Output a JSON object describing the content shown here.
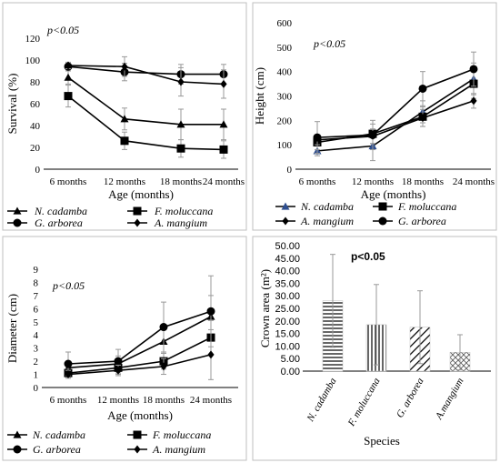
{
  "chart_data": [
    {
      "type": "line",
      "x": [
        "6 months",
        "12 months",
        "18 months",
        "24 months"
      ],
      "xlabel": "Age (months)",
      "ylabel": "Survival (%)",
      "ylim": [
        0,
        120
      ],
      "yticks": [
        0,
        20,
        40,
        60,
        80,
        100,
        120
      ],
      "annotation": "p<0.05",
      "series": [
        {
          "name": "N. cadamba",
          "marker": "triangle",
          "values": [
            84,
            46,
            41,
            41
          ],
          "err": [
            6,
            10,
            14,
            14
          ]
        },
        {
          "name": "F. moluccana",
          "marker": "square",
          "values": [
            67,
            26,
            19,
            18
          ],
          "err": [
            10,
            8,
            8,
            8
          ]
        },
        {
          "name": "G. arborea",
          "marker": "circle",
          "values": [
            94,
            89,
            87,
            87
          ],
          "err": [
            3,
            8,
            9,
            9
          ]
        },
        {
          "name": "A. mangium",
          "marker": "diamond",
          "values": [
            95,
            94,
            80,
            78
          ],
          "err": [
            3,
            9,
            13,
            13
          ]
        }
      ],
      "legend_placement": "bottom"
    },
    {
      "type": "line",
      "x": [
        "6 months",
        "12 months",
        "18 months",
        "24 months"
      ],
      "xlabel": "Age (months)",
      "ylabel": "Height (cm)",
      "ylim": [
        0,
        600
      ],
      "yticks": [
        0,
        100,
        200,
        300,
        400,
        500,
        600
      ],
      "annotation": "p<0.05",
      "series": [
        {
          "name": "N. cadamba",
          "marker": "triangle",
          "color": "#2f4f8f",
          "values": [
            75,
            95,
            235,
            370
          ],
          "err": [
            20,
            60,
            45,
            65
          ]
        },
        {
          "name": "F. moluccana",
          "marker": "square",
          "values": [
            110,
            145,
            215,
            350
          ],
          "err": [
            30,
            40,
            40,
            60
          ]
        },
        {
          "name": "A. mangium",
          "marker": "diamond",
          "values": [
            120,
            135,
            210,
            280
          ],
          "err": [
            20,
            30,
            35,
            30
          ]
        },
        {
          "name": "G. arborea",
          "marker": "circle",
          "values": [
            130,
            140,
            330,
            410
          ],
          "err": [
            65,
            60,
            70,
            70
          ]
        }
      ],
      "legend_placement": "bottom"
    },
    {
      "type": "line",
      "x": [
        "6 months",
        "12 months",
        "18 months",
        "24 months"
      ],
      "xlabel": "Age (months)",
      "ylabel": "Diameter (cm)",
      "ylim": [
        0,
        9
      ],
      "yticks": [
        0,
        1,
        2,
        3,
        4,
        5,
        6,
        7,
        8,
        9
      ],
      "annotation": "p<0.05",
      "series": [
        {
          "name": "N. cadamba",
          "marker": "triangle",
          "values": [
            1.5,
            1.8,
            3.5,
            5.4
          ],
          "err": [
            0.5,
            0.6,
            0.9,
            1.6
          ]
        },
        {
          "name": "F. moluccana",
          "marker": "square",
          "values": [
            1.1,
            1.5,
            2.0,
            3.8
          ],
          "err": [
            0.3,
            0.5,
            0.6,
            1.3
          ]
        },
        {
          "name": "G. arborea",
          "marker": "circle",
          "values": [
            1.8,
            2.0,
            4.6,
            5.8
          ],
          "err": [
            0.9,
            0.9,
            1.9,
            2.7
          ]
        },
        {
          "name": "A. mangium",
          "marker": "diamond",
          "values": [
            1.0,
            1.3,
            1.6,
            2.5
          ],
          "err": [
            0.3,
            0.4,
            0.6,
            1.9
          ]
        }
      ],
      "legend_placement": "bottom"
    },
    {
      "type": "bar",
      "categories": [
        "N. cadamba",
        "F. moluccana",
        "G. arborea",
        "A.mangium"
      ],
      "values": [
        28.0,
        18.5,
        17.5,
        7.5
      ],
      "err": [
        18.5,
        16.0,
        14.5,
        7.0
      ],
      "patterns": [
        "horizontal",
        "vertical",
        "diagonal",
        "crosshatch"
      ],
      "xlabel": "Species",
      "ylabel": "Crown area (m²)",
      "ylim": [
        0,
        50
      ],
      "yticks": [
        "0.00",
        "5.00",
        "10.00",
        "15.00",
        "20.00",
        "25.00",
        "30.00",
        "35.00",
        "40.00",
        "45.00",
        "50.00"
      ],
      "annotation": "p<0.05"
    }
  ]
}
